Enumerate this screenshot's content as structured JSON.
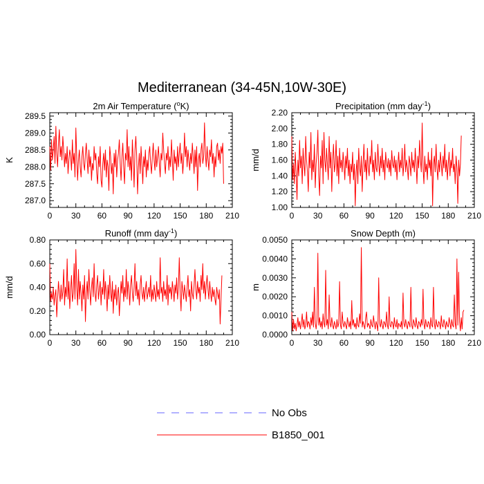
{
  "title": "Mediterranean (34-45N,10W-30E)",
  "colors": {
    "model": "#ff0000",
    "obs": "#6666ff",
    "axis": "#000000"
  },
  "legend": {
    "items": [
      {
        "label": "No Obs",
        "style": "dashed",
        "color": "#6666ff"
      },
      {
        "label": "B1850_001",
        "style": "solid",
        "color": "#ff0000"
      }
    ]
  },
  "chart_data": [
    {
      "type": "line",
      "title": "2m Air Temperature (oK)",
      "title_main": "2m Air Temperature (",
      "title_sup": "o",
      "title_end": "K)",
      "ylabel": "K",
      "xlim": [
        0,
        210
      ],
      "ylim": [
        286.8,
        289.6
      ],
      "xticks": [
        "0",
        "30",
        "60",
        "90",
        "120",
        "150",
        "180",
        "210"
      ],
      "yticks": [
        "287.0",
        "287.5",
        "288.0",
        "288.5",
        "289.0",
        "289.5"
      ],
      "ytick_values": [
        287.0,
        287.5,
        288.0,
        288.5,
        289.0,
        289.5
      ],
      "series": [
        {
          "name": "B1850_001",
          "x_start": 0,
          "x_step": 1,
          "values": [
            288.6,
            287.9,
            288.8,
            288.2,
            288.5,
            288.9,
            288.1,
            289.2,
            288.4,
            288.0,
            288.7,
            289.1,
            288.3,
            288.6,
            288.2,
            288.9,
            288.5,
            288.0,
            288.4,
            288.1,
            288.6,
            287.8,
            288.2,
            288.5,
            288.3,
            287.9,
            288.8,
            288.1,
            288.4,
            287.7,
            289.15,
            288.3,
            287.6,
            288.2,
            288.5,
            288.0,
            287.7,
            288.3,
            288.6,
            288.1,
            287.9,
            288.4,
            288.7,
            288.2,
            287.8,
            288.5,
            288.0,
            288.3,
            287.6,
            288.1,
            287.9,
            288.6,
            288.2,
            288.4,
            287.8,
            287.5,
            288.3,
            288.0,
            288.6,
            287.6,
            287.4,
            288.1,
            288.4,
            287.9,
            288.5,
            287.7,
            288.2,
            288.0,
            287.3,
            288.6,
            288.3,
            287.8,
            288.1,
            287.2,
            288.4,
            288.0,
            288.5,
            287.7,
            288.2,
            288.4,
            288.8,
            288.1,
            287.6,
            288.3,
            288.7,
            288.0,
            287.5,
            288.4,
            288.2,
            289.1,
            288.0,
            288.6,
            287.9,
            288.3,
            287.6,
            288.8,
            288.2,
            287.4,
            288.5,
            288.9,
            288.3,
            287.2,
            288.0,
            288.4,
            287.8,
            288.6,
            288.1,
            287.5,
            288.3,
            288.0,
            288.5,
            287.7,
            288.2,
            287.9,
            288.4,
            288.6,
            288.1,
            287.8,
            288.3,
            288.7,
            288.2,
            287.9,
            288.5,
            288.0,
            288.3,
            288.6,
            288.1,
            287.7,
            288.4,
            288.2,
            289.0,
            288.5,
            288.1,
            287.8,
            288.4,
            288.2,
            288.6,
            287.9,
            288.3,
            288.0,
            288.8,
            288.2,
            287.6,
            288.5,
            288.1,
            288.3,
            287.9,
            288.6,
            288.0,
            288.4,
            288.7,
            288.1,
            288.4,
            287.8,
            288.2,
            289.0,
            288.3,
            288.6,
            288.0,
            288.5,
            288.2,
            287.9,
            288.4,
            288.1,
            288.7,
            288.3,
            287.8,
            288.5,
            288.0,
            288.6,
            287.3,
            288.2,
            288.4,
            288.0,
            288.5,
            288.7,
            288.1,
            288.3,
            289.3,
            288.4,
            288.0,
            288.6,
            288.2,
            287.9,
            288.5,
            288.3,
            288.8,
            288.1,
            288.4,
            287.7,
            288.3,
            288.0,
            288.6,
            288.7,
            288.2,
            288.5,
            288.1,
            288.6,
            288.4,
            288.7,
            287.5
          ]
        }
      ]
    },
    {
      "type": "line",
      "title": "Precipitation (mm day-1)",
      "title_main": "Precipitation (mm day",
      "title_sup": "-1",
      "title_end": ")",
      "ylabel": "mm/d",
      "xlim": [
        0,
        210
      ],
      "ylim": [
        1.0,
        2.2
      ],
      "xticks": [
        "0",
        "30",
        "60",
        "90",
        "120",
        "150",
        "180",
        "210"
      ],
      "yticks": [
        "1.00",
        "1.20",
        "1.40",
        "1.60",
        "1.80",
        "2.00",
        "2.20"
      ],
      "ytick_values": [
        1.0,
        1.2,
        1.4,
        1.6,
        1.8,
        2.0,
        2.2
      ],
      "series": [
        {
          "name": "B1850_001",
          "x_start": 0,
          "x_step": 1,
          "values": [
            1.9,
            1.35,
            1.55,
            1.3,
            1.7,
            1.45,
            1.1,
            1.6,
            1.4,
            1.85,
            1.5,
            1.65,
            1.3,
            1.75,
            1.55,
            1.4,
            1.9,
            1.6,
            1.45,
            1.2,
            1.7,
            1.5,
            1.95,
            1.35,
            1.6,
            1.45,
            1.8,
            1.25,
            1.55,
            1.7,
            1.98,
            1.4,
            1.15,
            1.65,
            1.5,
            1.85,
            1.3,
            1.95,
            1.6,
            1.45,
            1.75,
            1.55,
            1.35,
            1.9,
            1.5,
            1.7,
            1.2,
            1.6,
            1.8,
            1.45,
            1.55,
            1.85,
            1.4,
            1.65,
            1.3,
            1.75,
            1.5,
            1.6,
            1.45,
            1.7,
            1.55,
            1.35,
            1.65,
            1.5,
            1.75,
            1.4,
            1.6,
            1.3,
            1.55,
            1.45,
            1.7,
            1.35,
            1.55,
            1.02,
            1.45,
            1.6,
            1.3,
            1.75,
            1.5,
            1.4,
            1.65,
            1.2,
            1.55,
            1.8,
            1.45,
            1.6,
            1.35,
            1.75,
            1.5,
            1.4,
            1.65,
            1.55,
            1.85,
            1.45,
            1.6,
            1.35,
            1.7,
            1.5,
            1.45,
            1.8,
            1.55,
            1.4,
            1.65,
            1.5,
            1.75,
            1.45,
            1.6,
            1.35,
            1.7,
            1.55,
            1.5,
            1.62,
            1.45,
            1.6,
            1.4,
            1.72,
            1.55,
            1.5,
            1.65,
            1.45,
            1.6,
            1.35,
            1.55,
            1.7,
            1.45,
            1.6,
            1.5,
            1.75,
            1.4,
            1.55,
            1.8,
            1.45,
            1.6,
            1.5,
            1.35,
            1.65,
            1.55,
            1.4,
            1.7,
            1.5,
            1.6,
            1.45,
            1.75,
            1.55,
            1.3,
            1.65,
            1.5,
            1.85,
            1.6,
            1.45,
            2.07,
            1.5,
            1.3,
            1.65,
            1.45,
            1.55,
            1.35,
            1.7,
            1.5,
            1.6,
            1.4,
            1.75,
            1.02,
            1.55,
            1.65,
            1.45,
            1.8,
            1.5,
            1.35,
            1.6,
            1.45,
            1.7,
            1.55,
            1.4,
            1.65,
            1.5,
            1.8,
            1.45,
            1.6,
            1.35,
            1.55,
            1.7,
            1.4,
            1.6,
            1.5,
            1.75,
            1.45,
            1.55,
            1.3,
            1.65,
            1.5,
            1.05,
            1.6,
            1.4,
            1.55,
            1.91
          ]
        }
      ]
    },
    {
      "type": "line",
      "title": "Runoff (mm day-1)",
      "title_main": "Runoff (mm day",
      "title_sup": "-1",
      "title_end": ")",
      "ylabel": "mm/d",
      "xlim": [
        0,
        210
      ],
      "ylim": [
        0.0,
        0.8
      ],
      "xticks": [
        "0",
        "30",
        "60",
        "90",
        "120",
        "150",
        "180",
        "210"
      ],
      "yticks": [
        "0.00",
        "0.20",
        "0.40",
        "0.60",
        "0.80"
      ],
      "ytick_values": [
        0.0,
        0.2,
        0.4,
        0.6,
        0.8
      ],
      "series": [
        {
          "name": "B1850_001",
          "x_start": 0,
          "x_step": 1,
          "values": [
            0.6,
            0.28,
            0.35,
            0.3,
            0.4,
            0.25,
            0.33,
            0.38,
            0.15,
            0.3,
            0.45,
            0.35,
            0.28,
            0.42,
            0.3,
            0.36,
            0.55,
            0.25,
            0.4,
            0.32,
            0.64,
            0.3,
            0.45,
            0.22,
            0.38,
            0.5,
            0.28,
            0.35,
            0.6,
            0.3,
            0.72,
            0.4,
            0.25,
            0.55,
            0.3,
            0.45,
            0.35,
            0.2,
            0.42,
            0.3,
            0.5,
            0.11,
            0.35,
            0.45,
            0.3,
            0.55,
            0.38,
            0.25,
            0.4,
            0.48,
            0.32,
            0.6,
            0.35,
            0.28,
            0.42,
            0.5,
            0.3,
            0.38,
            0.45,
            0.25,
            0.4,
            0.34,
            0.55,
            0.3,
            0.45,
            0.36,
            0.2,
            0.42,
            0.3,
            0.5,
            0.35,
            0.28,
            0.45,
            0.18,
            0.38,
            0.3,
            0.42,
            0.25,
            0.35,
            0.4,
            0.16,
            0.3,
            0.45,
            0.35,
            0.5,
            0.28,
            0.4,
            0.32,
            0.55,
            0.3,
            0.45,
            0.38,
            0.25,
            0.42,
            0.5,
            0.35,
            0.28,
            0.4,
            0.6,
            0.33,
            0.45,
            0.3,
            0.38,
            0.25,
            0.42,
            0.5,
            0.35,
            0.3,
            0.4,
            0.28,
            0.38,
            0.45,
            0.3,
            0.35,
            0.4,
            0.32,
            0.5,
            0.28,
            0.38,
            0.3,
            0.42,
            0.35,
            0.28,
            0.45,
            0.32,
            0.38,
            0.3,
            0.65,
            0.35,
            0.4,
            0.28,
            0.45,
            0.33,
            0.38,
            0.3,
            0.5,
            0.25,
            0.42,
            0.35,
            0.4,
            0.3,
            0.45,
            0.38,
            0.28,
            0.42,
            0.35,
            0.48,
            0.3,
            0.4,
            0.65,
            0.35,
            0.2,
            0.45,
            0.38,
            0.3,
            0.42,
            0.35,
            0.28,
            0.4,
            0.5,
            0.32,
            0.38,
            0.2,
            0.45,
            0.35,
            0.3,
            0.42,
            0.55,
            0.38,
            0.3,
            0.45,
            0.35,
            0.4,
            0.28,
            0.5,
            0.38,
            0.6,
            0.35,
            0.45,
            0.3,
            0.42,
            0.5,
            0.38,
            0.3,
            0.45,
            0.35,
            0.28,
            0.4,
            0.32,
            0.38,
            0.3,
            0.25,
            0.4,
            0.35,
            0.3,
            0.38,
            0.09,
            0.3,
            0.5
          ]
        }
      ]
    },
    {
      "type": "line",
      "title": "Snow Depth (m)",
      "title_main": "Snow Depth (m)",
      "title_sup": "",
      "title_end": "",
      "ylabel": "m",
      "xlim": [
        0,
        210
      ],
      "ylim": [
        0.0,
        0.005
      ],
      "xticks": [
        "0",
        "30",
        "60",
        "90",
        "120",
        "150",
        "180",
        "210"
      ],
      "yticks": [
        "0.0000",
        "0.0010",
        "0.0020",
        "0.0030",
        "0.0040",
        "0.0050"
      ],
      "ytick_values": [
        0.0,
        0.001,
        0.002,
        0.003,
        0.004,
        0.005
      ],
      "series": [
        {
          "name": "B1850_001",
          "x_start": 0,
          "x_step": 1,
          "values": [
            0.0012,
            0.0002,
            0.0008,
            0.0003,
            0.0006,
            0.0002,
            0.0005,
            0.0009,
            0.0004,
            0.0007,
            0.0003,
            0.0006,
            0.0011,
            0.0004,
            0.0008,
            0.0003,
            0.0005,
            0.0012,
            0.0004,
            0.0007,
            0.0006,
            0.0003,
            0.0009,
            0.0005,
            0.0012,
            0.0004,
            0.0025,
            0.0006,
            0.0003,
            0.0008,
            0.0043,
            0.0005,
            0.0009,
            0.0004,
            0.0007,
            0.0003,
            0.0011,
            0.0006,
            0.0004,
            0.0034,
            0.0005,
            0.0008,
            0.0003,
            0.0021,
            0.0006,
            0.0004,
            0.0009,
            0.0005,
            0.0003,
            0.0007,
            0.0005,
            0.0003,
            0.0008,
            0.0004,
            0.0006,
            0.0028,
            0.0005,
            0.0003,
            0.0012,
            0.0006,
            0.0004,
            0.0007,
            0.0005,
            0.0003,
            0.0009,
            0.0006,
            0.0004,
            0.0007,
            0.0003,
            0.0018,
            0.0005,
            0.0008,
            0.0004,
            0.0006,
            0.0003,
            0.0009,
            0.0005,
            0.0004,
            0.0011,
            0.0006,
            0.0046,
            0.0004,
            0.0007,
            0.0005,
            0.0003,
            0.0009,
            0.0012,
            0.0004,
            0.0006,
            0.0005,
            0.0003,
            0.0008,
            0.0005,
            0.0004,
            0.001,
            0.0006,
            0.0003,
            0.0007,
            0.0005,
            0.0002,
            0.003,
            0.0006,
            0.0004,
            0.0008,
            0.0005,
            0.0003,
            0.0007,
            0.0006,
            0.0004,
            0.0012,
            0.0005,
            0.0003,
            0.002,
            0.0005,
            0.0004,
            0.0007,
            0.0006,
            0.0003,
            0.0009,
            0.0005,
            0.0004,
            0.0008,
            0.0003,
            0.0006,
            0.0005,
            0.0004,
            0.0007,
            0.0003,
            0.0022,
            0.0006,
            0.0004,
            0.0008,
            0.0005,
            0.0003,
            0.0007,
            0.0006,
            0.0004,
            0.0025,
            0.0005,
            0.0003,
            0.0008,
            0.0006,
            0.0004,
            0.0009,
            0.0005,
            0.0003,
            0.0007,
            0.0006,
            0.0004,
            0.0008,
            0.0005,
            0.0024,
            0.0006,
            0.0003,
            0.0008,
            0.0005,
            0.0004,
            0.0007,
            0.0006,
            0.0003,
            0.0009,
            0.0005,
            0.0004,
            0.0025,
            0.0006,
            0.0003,
            0.0008,
            0.0005,
            0.0004,
            0.0007,
            0.0006,
            0.0003,
            0.001,
            0.0005,
            0.0004,
            0.0008,
            0.0006,
            0.0003,
            0.0007,
            0.0005,
            0.0004,
            0.0009,
            0.0006,
            0.0003,
            0.0008,
            0.0005,
            0.0004,
            0.0021,
            0.0006,
            0.0003,
            0.004,
            0.0005,
            0.0033,
            0.0007,
            0.0002,
            0.0009,
            0.0003,
            0.0012,
            0.0013
          ]
        }
      ]
    }
  ]
}
